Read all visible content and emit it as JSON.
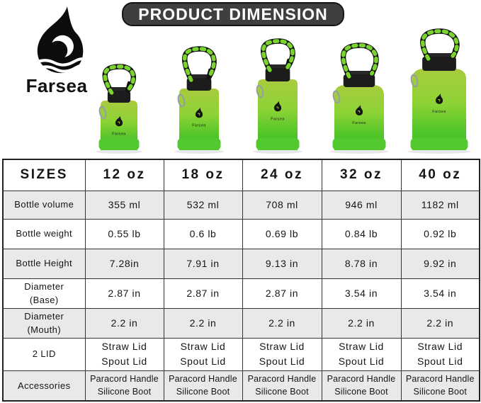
{
  "brand": {
    "name": "Farsea"
  },
  "banner": {
    "title": "PRODUCT DIMENSION"
  },
  "bottles": [
    {
      "label": "12 oz"
    },
    {
      "label": "18 oz"
    },
    {
      "label": "24 oz"
    },
    {
      "label": "32 oz"
    },
    {
      "label": "40 oz"
    }
  ],
  "table": {
    "header": [
      "SIZES",
      "12 oz",
      "18 oz",
      "24 oz",
      "32 oz",
      "40 oz"
    ],
    "rows": [
      {
        "label": "Bottle volume",
        "values": [
          "355 ml",
          "532 ml",
          "708 ml",
          "946 ml",
          "1182 ml"
        ]
      },
      {
        "label": "Bottle weight",
        "values": [
          "0.55 lb",
          "0.6 lb",
          "0.69 lb",
          "0.84 lb",
          "0.92 lb"
        ]
      },
      {
        "label": "Bottle Height",
        "values": [
          "7.28in",
          "7.91 in",
          "9.13 in",
          "8.78 in",
          "9.92 in"
        ]
      },
      {
        "label": "Diameter\n(Base)",
        "values": [
          "2.87 in",
          "2.87 in",
          "2.87 in",
          "3.54 in",
          "3.54 in"
        ]
      },
      {
        "label": "Diameter\n(Mouth)",
        "values": [
          "2.2 in",
          "2.2 in",
          "2.2 in",
          "2.2 in",
          "2.2 in"
        ]
      },
      {
        "label": "2 LID",
        "values": [
          "Straw Lid\nSpout Lid",
          "Straw Lid\nSpout Lid",
          "Straw Lid\nSpout Lid",
          "Straw Lid\nSpout Lid",
          "Straw Lid\nSpout Lid"
        ]
      },
      {
        "label": "Accessories",
        "values": [
          "Paracord Handle\nSilicone Boot",
          "Paracord Handle\nSilicone Boot",
          "Paracord Handle\nSilicone Boot",
          "Paracord Handle\nSilicone Boot",
          "Paracord Handle\nSilicone Boot"
        ]
      }
    ]
  },
  "colors": {
    "banner_bg": "#3f3f3f",
    "green_top": "#a8cb3f",
    "green_mid": "#8ed335",
    "green_bottom": "#4bc428",
    "boot_green": "#54c92f",
    "paracord_green": "#7ad42e",
    "stripe_gray": "#e9e9e9",
    "border_dark": "#333333"
  }
}
